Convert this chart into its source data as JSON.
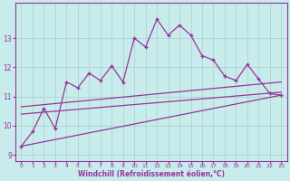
{
  "xlabel": "Windchill (Refroidissement éolien,°C)",
  "bg_color": "#c8ecec",
  "line_color": "#993399",
  "grid_color": "#aacccc",
  "xlim": [
    -0.5,
    23.5
  ],
  "ylim": [
    8.8,
    14.2
  ],
  "yticks": [
    9,
    10,
    11,
    12,
    13
  ],
  "xticks": [
    0,
    1,
    2,
    3,
    4,
    5,
    6,
    7,
    8,
    9,
    10,
    11,
    12,
    13,
    14,
    15,
    16,
    17,
    18,
    19,
    20,
    21,
    22,
    23
  ],
  "zigzag_x": [
    0,
    1,
    2,
    3,
    4,
    5,
    6,
    7,
    8,
    9,
    10,
    11,
    12,
    13,
    14,
    15,
    16,
    17,
    18,
    19,
    20,
    21,
    22,
    23
  ],
  "zigzag_y": [
    9.3,
    9.8,
    10.6,
    9.9,
    11.5,
    11.3,
    11.8,
    11.55,
    12.05,
    11.5,
    13.0,
    12.7,
    13.65,
    13.1,
    13.45,
    13.1,
    12.4,
    12.25,
    11.7,
    11.55,
    12.1,
    11.6,
    11.1,
    11.05
  ],
  "trend1_x": [
    0,
    23
  ],
  "trend1_y": [
    9.3,
    11.05
  ],
  "trend2_x": [
    0,
    23
  ],
  "trend2_y": [
    10.4,
    11.15
  ],
  "trend3_x": [
    0,
    23
  ],
  "trend3_y": [
    10.65,
    11.5
  ]
}
